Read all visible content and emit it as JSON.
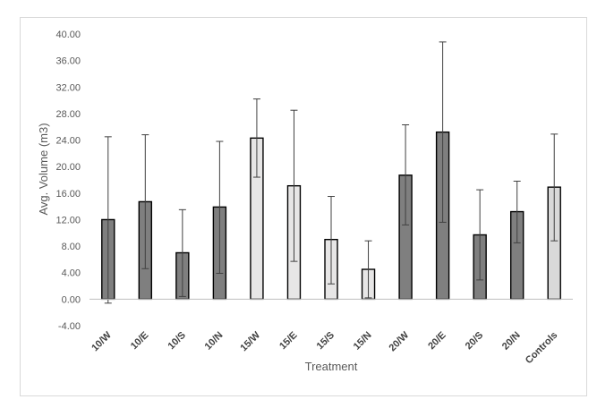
{
  "chart_data": {
    "type": "bar",
    "title": "",
    "xlabel": "Treatment",
    "ylabel": "Avg. Volume (m3)",
    "ylim": [
      -4,
      40
    ],
    "yticks": [
      -4,
      0,
      4,
      8,
      12,
      16,
      20,
      24,
      28,
      32,
      36,
      40
    ],
    "categories": [
      "10/W",
      "10/E",
      "10/S",
      "10/N",
      "15/W",
      "15/E",
      "15/S",
      "15/N",
      "20/W",
      "20/E",
      "20/S",
      "20/N",
      "Controls"
    ],
    "values": [
      12.0,
      14.7,
      7.0,
      13.9,
      24.3,
      17.1,
      9.0,
      4.5,
      18.7,
      25.2,
      9.7,
      13.2,
      16.9
    ],
    "error_low": [
      -0.6,
      4.6,
      0.4,
      3.9,
      18.4,
      5.7,
      2.3,
      0.2,
      11.2,
      11.6,
      2.9,
      8.5,
      8.8
    ],
    "error_high": [
      24.5,
      24.8,
      13.5,
      23.8,
      30.2,
      28.5,
      15.5,
      8.8,
      26.3,
      38.8,
      16.5,
      17.8,
      24.9
    ],
    "bar_colors": [
      "#7f7f7f",
      "#7f7f7f",
      "#7f7f7f",
      "#7f7f7f",
      "#e7e6e6",
      "#e7e6e6",
      "#e7e6e6",
      "#e7e6e6",
      "#7f7f7f",
      "#7f7f7f",
      "#7f7f7f",
      "#7f7f7f",
      "#d9d9d9"
    ],
    "grid": false
  }
}
